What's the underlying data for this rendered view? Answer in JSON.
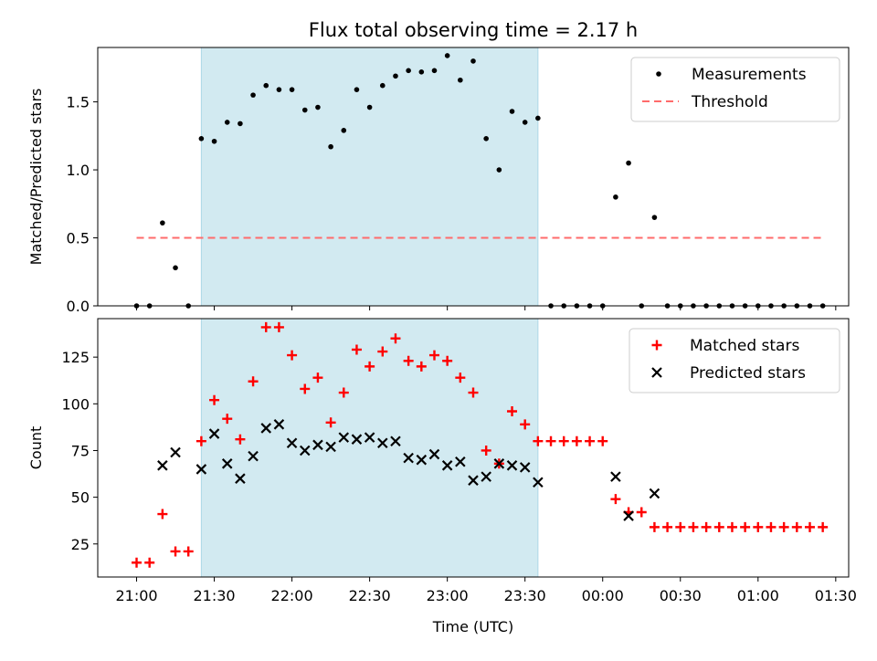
{
  "title": "Flux total observing time = 2.17 h",
  "colors": {
    "shade": "#add8e6",
    "measurement": "#000000",
    "threshold": "#ff6b6b",
    "matched": "#ff0000",
    "predicted": "#000000"
  },
  "chart_data": [
    {
      "type": "scatter",
      "ylabel": "Matched/Predicted stars",
      "xlim": [
        "20:45",
        "01:35"
      ],
      "ylim": [
        0,
        1.9
      ],
      "yticks": [
        0.0,
        0.5,
        1.0,
        1.5
      ],
      "ytick_labels": [
        "0.0",
        "0.5",
        "1.0",
        "1.5"
      ],
      "grid": false,
      "legend_position": "top-right",
      "shaded_interval": [
        "21:25",
        "23:35"
      ],
      "series": [
        {
          "name": "Measurements",
          "marker": "dot",
          "points": [
            [
              "21:00",
              0.0
            ],
            [
              "21:05",
              0.0
            ],
            [
              "21:10",
              0.61
            ],
            [
              "21:15",
              0.28
            ],
            [
              "21:20",
              0.0
            ],
            [
              "21:25",
              1.23
            ],
            [
              "21:30",
              1.21
            ],
            [
              "21:35",
              1.35
            ],
            [
              "21:40",
              1.34
            ],
            [
              "21:45",
              1.55
            ],
            [
              "21:50",
              1.62
            ],
            [
              "21:55",
              1.59
            ],
            [
              "22:00",
              1.59
            ],
            [
              "22:05",
              1.44
            ],
            [
              "22:10",
              1.46
            ],
            [
              "22:15",
              1.17
            ],
            [
              "22:20",
              1.29
            ],
            [
              "22:25",
              1.59
            ],
            [
              "22:30",
              1.46
            ],
            [
              "22:35",
              1.62
            ],
            [
              "22:40",
              1.69
            ],
            [
              "22:45",
              1.73
            ],
            [
              "22:50",
              1.72
            ],
            [
              "22:55",
              1.73
            ],
            [
              "23:00",
              1.84
            ],
            [
              "23:05",
              1.66
            ],
            [
              "23:10",
              1.8
            ],
            [
              "23:15",
              1.23
            ],
            [
              "23:20",
              1.0
            ],
            [
              "23:25",
              1.43
            ],
            [
              "23:30",
              1.35
            ],
            [
              "23:35",
              1.38
            ],
            [
              "23:40",
              0.0
            ],
            [
              "23:45",
              0.0
            ],
            [
              "23:50",
              0.0
            ],
            [
              "23:55",
              0.0
            ],
            [
              "00:00",
              0.0
            ],
            [
              "00:05",
              0.8
            ],
            [
              "00:10",
              1.05
            ],
            [
              "00:15",
              0.0
            ],
            [
              "00:20",
              0.65
            ],
            [
              "00:25",
              0.0
            ],
            [
              "00:30",
              0.0
            ],
            [
              "00:35",
              0.0
            ],
            [
              "00:40",
              0.0
            ],
            [
              "00:45",
              0.0
            ],
            [
              "00:50",
              0.0
            ],
            [
              "00:55",
              0.0
            ],
            [
              "01:00",
              0.0
            ],
            [
              "01:05",
              0.0
            ],
            [
              "01:10",
              0.0
            ],
            [
              "01:15",
              0.0
            ],
            [
              "01:20",
              0.0
            ],
            [
              "01:25",
              0.0
            ]
          ]
        },
        {
          "name": "Threshold",
          "style": "dashed",
          "points": [
            [
              "21:00",
              0.5
            ],
            [
              "01:25",
              0.5
            ]
          ]
        }
      ]
    },
    {
      "type": "scatter",
      "ylabel": "Count",
      "xlabel": "Time (UTC)",
      "xlim": [
        "20:45",
        "01:35"
      ],
      "ylim": [
        7.3,
        145.6
      ],
      "yticks": [
        25,
        50,
        75,
        100,
        125
      ],
      "xtick_labels": [
        "21:00",
        "21:30",
        "22:00",
        "22:30",
        "23:00",
        "23:30",
        "00:00",
        "00:30",
        "01:00",
        "01:30"
      ],
      "grid": false,
      "legend_position": "top-right",
      "shaded_interval": [
        "21:25",
        "23:35"
      ],
      "series": [
        {
          "name": "Matched stars",
          "marker": "plus",
          "points": [
            [
              "21:00",
              15
            ],
            [
              "21:05",
              15
            ],
            [
              "21:10",
              41
            ],
            [
              "21:15",
              21
            ],
            [
              "21:20",
              21
            ],
            [
              "21:25",
              80
            ],
            [
              "21:30",
              102
            ],
            [
              "21:35",
              92
            ],
            [
              "21:40",
              81
            ],
            [
              "21:45",
              112
            ],
            [
              "21:50",
              141
            ],
            [
              "21:55",
              141
            ],
            [
              "22:00",
              126
            ],
            [
              "22:05",
              108
            ],
            [
              "22:10",
              114
            ],
            [
              "22:15",
              90
            ],
            [
              "22:20",
              106
            ],
            [
              "22:25",
              129
            ],
            [
              "22:30",
              120
            ],
            [
              "22:35",
              128
            ],
            [
              "22:40",
              135
            ],
            [
              "22:45",
              123
            ],
            [
              "22:50",
              120
            ],
            [
              "22:55",
              126
            ],
            [
              "23:00",
              123
            ],
            [
              "23:05",
              114
            ],
            [
              "23:10",
              106
            ],
            [
              "23:15",
              75
            ],
            [
              "23:20",
              68
            ],
            [
              "23:25",
              96
            ],
            [
              "23:30",
              89
            ],
            [
              "23:35",
              80
            ],
            [
              "23:40",
              80
            ],
            [
              "23:45",
              80
            ],
            [
              "23:50",
              80
            ],
            [
              "23:55",
              80
            ],
            [
              "00:00",
              80
            ],
            [
              "00:05",
              49
            ],
            [
              "00:10",
              42
            ],
            [
              "00:15",
              42
            ],
            [
              "00:20",
              34
            ],
            [
              "00:25",
              34
            ],
            [
              "00:30",
              34
            ],
            [
              "00:35",
              34
            ],
            [
              "00:40",
              34
            ],
            [
              "00:45",
              34
            ],
            [
              "00:50",
              34
            ],
            [
              "00:55",
              34
            ],
            [
              "01:00",
              34
            ],
            [
              "01:05",
              34
            ],
            [
              "01:10",
              34
            ],
            [
              "01:15",
              34
            ],
            [
              "01:20",
              34
            ],
            [
              "01:25",
              34
            ]
          ]
        },
        {
          "name": "Predicted stars",
          "marker": "x",
          "points": [
            [
              "21:10",
              67
            ],
            [
              "21:15",
              74
            ],
            [
              "21:25",
              65
            ],
            [
              "21:30",
              84
            ],
            [
              "21:35",
              68
            ],
            [
              "21:40",
              60
            ],
            [
              "21:45",
              72
            ],
            [
              "21:50",
              87
            ],
            [
              "21:55",
              89
            ],
            [
              "22:00",
              79
            ],
            [
              "22:05",
              75
            ],
            [
              "22:10",
              78
            ],
            [
              "22:15",
              77
            ],
            [
              "22:20",
              82
            ],
            [
              "22:25",
              81
            ],
            [
              "22:30",
              82
            ],
            [
              "22:35",
              79
            ],
            [
              "22:40",
              80
            ],
            [
              "22:45",
              71
            ],
            [
              "22:50",
              70
            ],
            [
              "22:55",
              73
            ],
            [
              "23:00",
              67
            ],
            [
              "23:05",
              69
            ],
            [
              "23:10",
              59
            ],
            [
              "23:15",
              61
            ],
            [
              "23:20",
              68
            ],
            [
              "23:25",
              67
            ],
            [
              "23:30",
              66
            ],
            [
              "23:35",
              58
            ],
            [
              "00:05",
              61
            ],
            [
              "00:10",
              40
            ],
            [
              "00:20",
              52
            ]
          ]
        }
      ]
    }
  ]
}
